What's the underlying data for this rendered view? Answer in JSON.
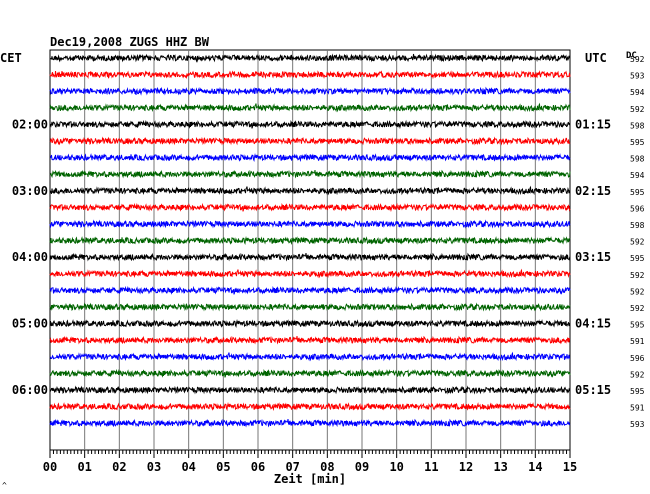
{
  "chart_data": {
    "type": "line",
    "title": "Dec19,2008   ZUGS HHZ BW",
    "left_timezone": "CET",
    "right_timezone": "UTC",
    "dc_header": "DC",
    "xlabel": "Zeit [min]",
    "x_ticks": [
      "00",
      "01",
      "02",
      "03",
      "04",
      "05",
      "06",
      "07",
      "08",
      "09",
      "10",
      "11",
      "12",
      "13",
      "14",
      "15"
    ],
    "xlim": [
      0,
      15
    ],
    "grid": true,
    "left_hour_labels": [
      {
        "trace": 4,
        "text": "02:00"
      },
      {
        "trace": 8,
        "text": "03:00"
      },
      {
        "trace": 12,
        "text": "04:00"
      },
      {
        "trace": 16,
        "text": "05:00"
      },
      {
        "trace": 20,
        "text": "06:00"
      }
    ],
    "right_hour_labels": [
      {
        "trace": 4,
        "text": "01:15"
      },
      {
        "trace": 8,
        "text": "02:15"
      },
      {
        "trace": 12,
        "text": "03:15"
      },
      {
        "trace": 16,
        "text": "04:15"
      },
      {
        "trace": 20,
        "text": "05:15"
      }
    ],
    "trace_colors": [
      "#000000",
      "#ff0000",
      "#0000ff",
      "#006400"
    ],
    "dc_values": [
      "592",
      "593",
      "594",
      "592",
      "598",
      "595",
      "598",
      "594",
      "595",
      "596",
      "598",
      "592",
      "595",
      "592",
      "592",
      "592",
      "595",
      "591",
      "596",
      "592",
      "595",
      "591",
      "593"
    ],
    "footer_mark": "^"
  }
}
